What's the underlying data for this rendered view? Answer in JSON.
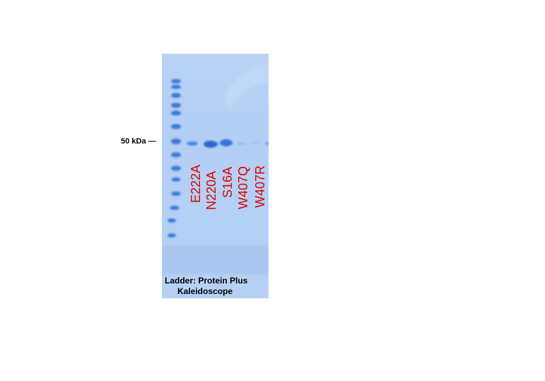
{
  "marker_label": "50 kDa —",
  "lanes": [
    "E222A",
    "N220A",
    "S16A",
    "W407Q",
    "W407R"
  ],
  "ladder": {
    "line1": "Ladder: Protein Plus",
    "line2": "Kaleidoscope"
  },
  "colors": {
    "gel": "#b5d0f5",
    "band": "#2f6fd6",
    "label": "#e00000"
  }
}
